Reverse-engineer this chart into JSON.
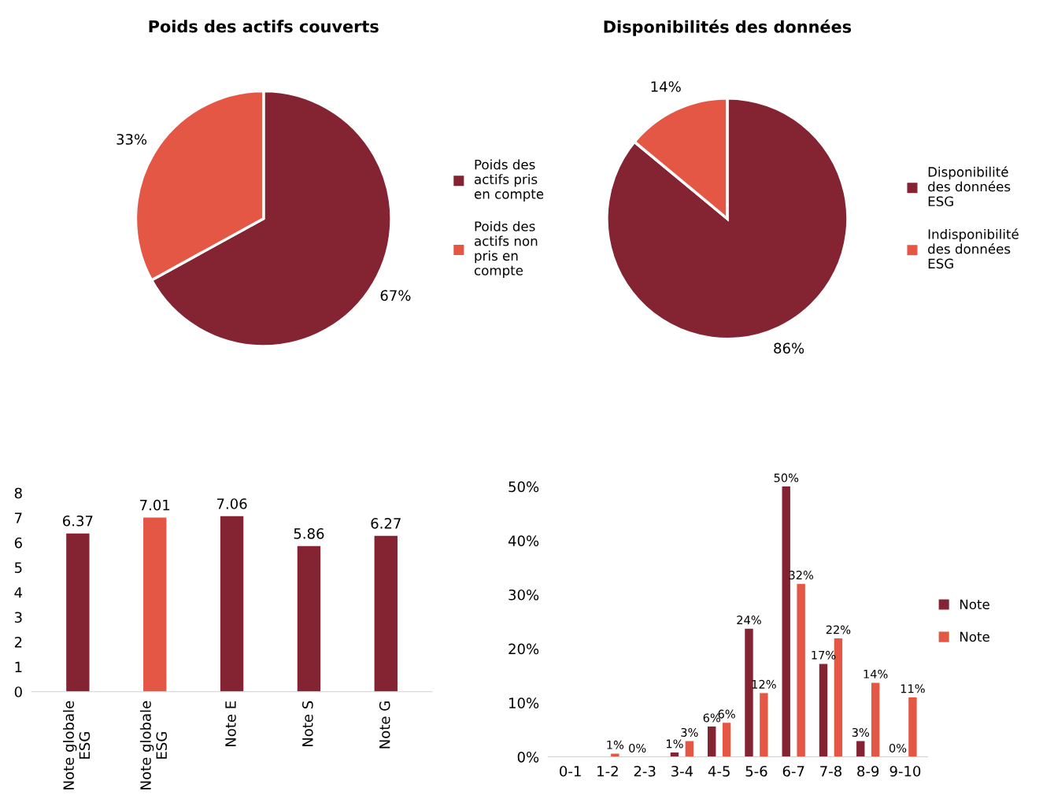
{
  "chart_data": [
    {
      "type": "pie",
      "title": "Poids des actifs couverts",
      "categories": [
        "Poids des\nactifs pris\nen compte",
        "Poids des\nactifs non\npris en\ncompte"
      ],
      "values": [
        67,
        33
      ],
      "colors": [
        "#842332",
        "#e55745"
      ],
      "value_labels": [
        "67%",
        "33%"
      ],
      "legend": "right"
    },
    {
      "type": "pie",
      "title": "Disponibilités des données",
      "categories": [
        "Disponibilité\ndes données\nESG",
        "Indisponibilité\ndes données\nESG"
      ],
      "values": [
        86,
        14
      ],
      "colors": [
        "#842332",
        "#e55745"
      ],
      "value_labels": [
        "86%",
        "14%"
      ],
      "legend": "right"
    },
    {
      "type": "bar",
      "categories": [
        "Note globale\nESG",
        "Note globale\nESG",
        "Note E",
        "Note S",
        "Note G"
      ],
      "values": [
        6.37,
        7.01,
        7.06,
        5.86,
        6.27
      ],
      "colors": [
        "#842332",
        "#e55745",
        "#842332",
        "#842332",
        "#842332"
      ],
      "ylim": [
        0,
        8
      ],
      "yticks": [
        0,
        1,
        2,
        3,
        4,
        5,
        6,
        7,
        8
      ],
      "data_labels": true,
      "grid": false
    },
    {
      "type": "bar",
      "categories": [
        "0-1",
        "1-2",
        "2-3",
        "3-4",
        "4-5",
        "5-6",
        "6-7",
        "7-8",
        "8-9",
        "9-10"
      ],
      "series": [
        {
          "name": "Note",
          "color": "#842332",
          "values": [
            0,
            0,
            0,
            0.8,
            5.6,
            23.7,
            50,
            17.2,
            2.9,
            0
          ],
          "value_labels": [
            null,
            null,
            "0%",
            "1%",
            "6%",
            "24%",
            "50%",
            "17%",
            "3%",
            "0%"
          ]
        },
        {
          "name": "Note",
          "color": "#e55745",
          "values": [
            0,
            0.6,
            0,
            2.9,
            6.3,
            11.8,
            32,
            21.9,
            13.7,
            11
          ],
          "value_labels": [
            null,
            "1%",
            null,
            "3%",
            "6%",
            "12%",
            "32%",
            "22%",
            "14%",
            "11%"
          ]
        }
      ],
      "ylim": [
        0,
        50
      ],
      "yticks": [
        {
          "value": 0,
          "label": "0%"
        },
        {
          "value": 10,
          "label": "10%"
        },
        {
          "value": 20,
          "label": "20%"
        },
        {
          "value": 30,
          "label": "30%"
        },
        {
          "value": 40,
          "label": "40%"
        },
        {
          "value": 50,
          "label": "50%"
        }
      ],
      "legend": "right",
      "grid": false
    }
  ]
}
